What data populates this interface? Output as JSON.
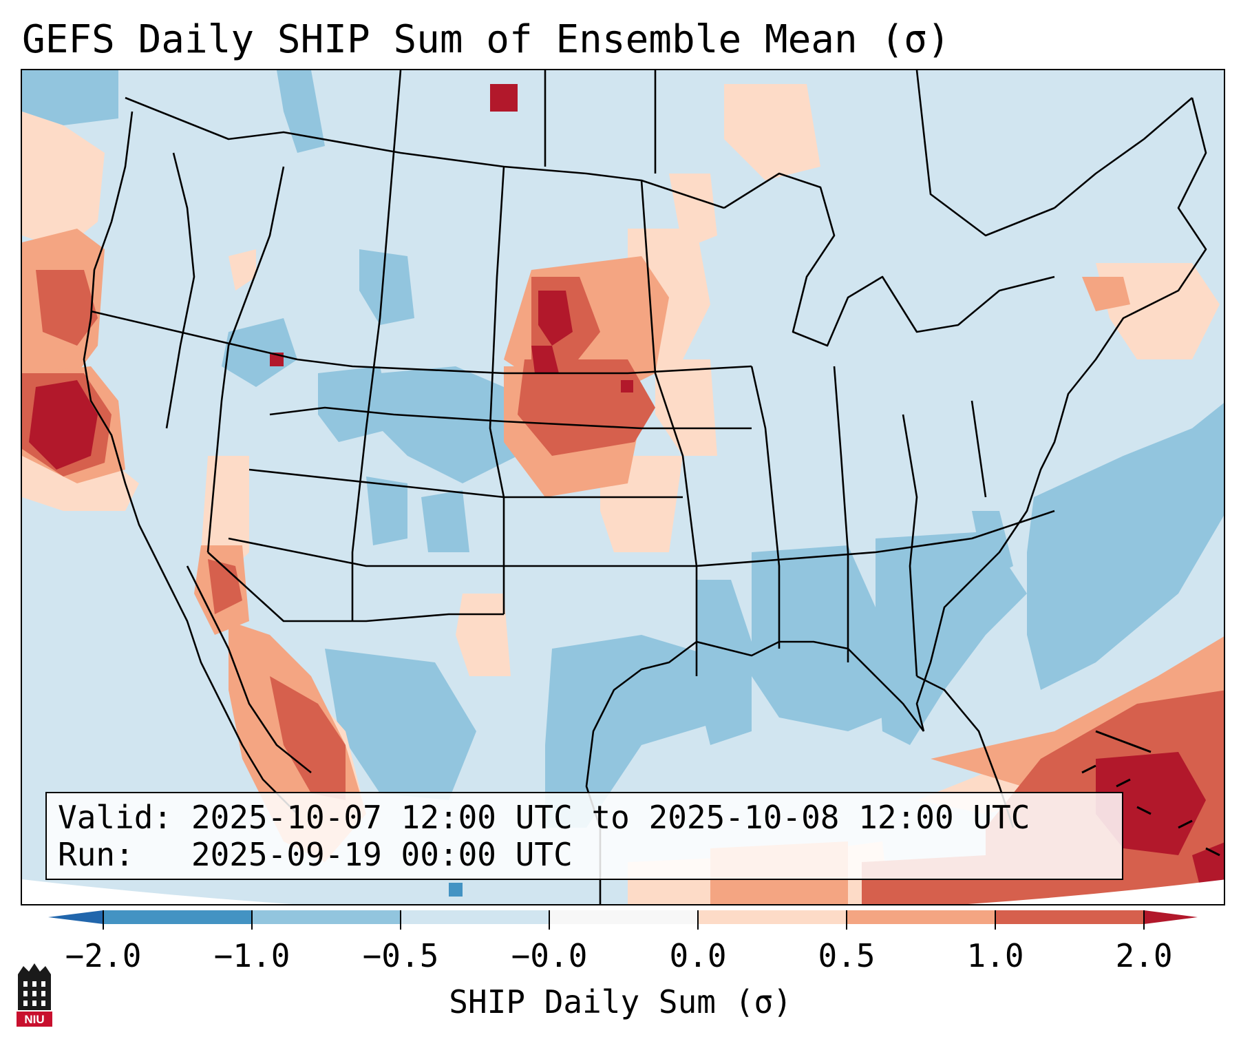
{
  "title": "GEFS Daily SHIP Sum of Ensemble Mean (σ)",
  "info": {
    "valid_label": "Valid:",
    "valid_value": "2025-10-07 12:00 UTC to 2025-10-08 12:00 UTC",
    "run_label": "Run:",
    "run_value": "2025-09-19 00:00 UTC"
  },
  "colorbar": {
    "label": "SHIP Daily Sum (σ)",
    "ticks": [
      "−2.0",
      "−1.0",
      "−0.5",
      "−0.0",
      "0.0",
      "0.5",
      "1.0",
      "2.0"
    ],
    "colors": [
      "#4393c3",
      "#92c5de",
      "#d1e5f0",
      "#f7f7f7",
      "#fddbc7",
      "#f4a582",
      "#d6604d",
      "#b2182b"
    ],
    "extend_low_color": "#2166ac",
    "extend_high_color": "#b2182b"
  },
  "logo": {
    "text": "NIU",
    "color": "#c8102e"
  },
  "map": {
    "background_color": "#d1e5f0",
    "outline_color": "#000000"
  }
}
